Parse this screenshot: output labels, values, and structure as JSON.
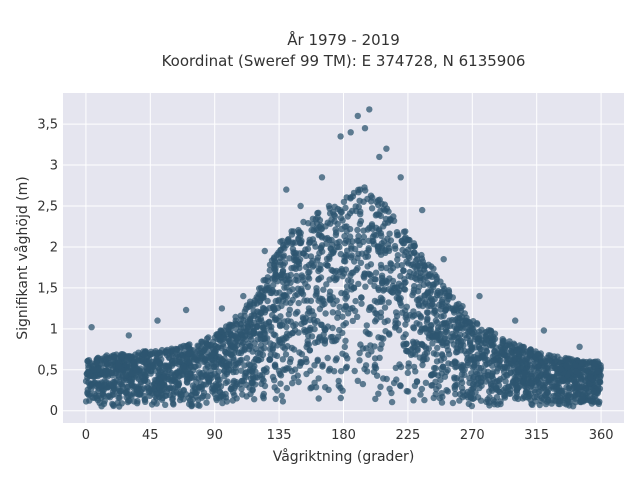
{
  "chart_data": {
    "type": "scatter",
    "title": "År 1979 - 2019",
    "subtitle": "Koordinat (Sweref 99 TM): E 374728, N 6135906",
    "xlabel": "Vågriktning (grader)",
    "ylabel": "Signifikant våghöjd (m)",
    "xlim": [
      -16,
      376
    ],
    "ylim": [
      -0.15,
      3.88
    ],
    "x_ticks": [
      0,
      45,
      90,
      135,
      180,
      225,
      270,
      315,
      360
    ],
    "x_tick_labels": [
      "0",
      "45",
      "90",
      "135",
      "180",
      "225",
      "270",
      "315",
      "360"
    ],
    "y_ticks": [
      0,
      0.5,
      1,
      1.5,
      2,
      2.5,
      3,
      3.5
    ],
    "y_tick_labels": [
      "0",
      "0,5",
      "1",
      "1,5",
      "2",
      "2,5",
      "3",
      "3,5"
    ],
    "grid": true,
    "legend": "none",
    "marker_color": "#2e5670",
    "background_color": "#e5e5ef",
    "envelope": {
      "x": [
        0,
        15,
        30,
        45,
        60,
        75,
        90,
        105,
        120,
        135,
        150,
        165,
        180,
        195,
        210,
        225,
        240,
        255,
        270,
        285,
        300,
        315,
        330,
        345,
        360
      ],
      "y_low": [
        0.05,
        0.05,
        0.05,
        0.05,
        0.05,
        0.05,
        0.05,
        0.05,
        0.06,
        0.07,
        0.08,
        0.08,
        0.08,
        0.08,
        0.08,
        0.08,
        0.07,
        0.06,
        0.05,
        0.05,
        0.05,
        0.05,
        0.05,
        0.05,
        0.05
      ],
      "y_high": [
        0.62,
        0.68,
        0.7,
        0.74,
        0.78,
        0.82,
        0.95,
        1.15,
        1.45,
        2.05,
        2.3,
        2.45,
        2.65,
        2.75,
        2.5,
        2.15,
        1.8,
        1.45,
        1.15,
        0.95,
        0.82,
        0.72,
        0.66,
        0.62,
        0.6
      ]
    },
    "outliers": [
      {
        "x": 4,
        "y": 1.02
      },
      {
        "x": 30,
        "y": 0.92
      },
      {
        "x": 50,
        "y": 1.1
      },
      {
        "x": 70,
        "y": 1.23
      },
      {
        "x": 95,
        "y": 1.25
      },
      {
        "x": 110,
        "y": 1.4
      },
      {
        "x": 125,
        "y": 1.95
      },
      {
        "x": 140,
        "y": 2.7
      },
      {
        "x": 150,
        "y": 2.5
      },
      {
        "x": 165,
        "y": 2.85
      },
      {
        "x": 178,
        "y": 3.35
      },
      {
        "x": 185,
        "y": 3.4
      },
      {
        "x": 190,
        "y": 3.6
      },
      {
        "x": 195,
        "y": 3.45
      },
      {
        "x": 198,
        "y": 3.68
      },
      {
        "x": 205,
        "y": 3.1
      },
      {
        "x": 210,
        "y": 3.2
      },
      {
        "x": 220,
        "y": 2.85
      },
      {
        "x": 235,
        "y": 2.45
      },
      {
        "x": 250,
        "y": 1.85
      },
      {
        "x": 275,
        "y": 1.4
      },
      {
        "x": 300,
        "y": 1.1
      },
      {
        "x": 320,
        "y": 0.98
      },
      {
        "x": 345,
        "y": 0.78
      }
    ]
  }
}
